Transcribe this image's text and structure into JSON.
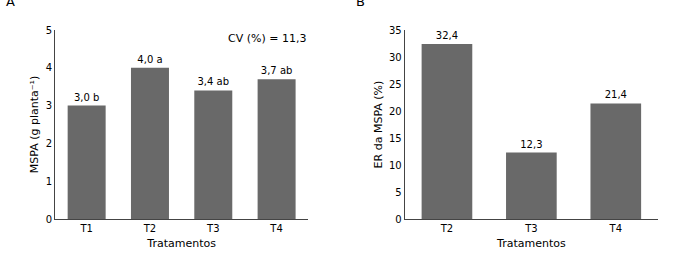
{
  "chart_data": [
    {
      "type": "bar",
      "title": "A",
      "categories": [
        "T1",
        "T2",
        "T3",
        "T4"
      ],
      "values": [
        3.0,
        4.0,
        3.4,
        3.7
      ],
      "value_labels": [
        "3,0 b",
        "4,0 a",
        "3,4 ab",
        "3,7 ab"
      ],
      "data_labels": true,
      "color": "#696969",
      "xlabel": "Tratamentos",
      "ylabel": "MSPA (g planta⁻¹)",
      "ylim": [
        0,
        5
      ],
      "yticks": [
        0,
        1,
        2,
        3,
        4,
        5
      ],
      "annotations": [
        "CV (%) = 11,3"
      ],
      "grid": false
    },
    {
      "type": "bar",
      "title": "B",
      "categories": [
        "T2",
        "T3",
        "T4"
      ],
      "values": [
        32.4,
        12.3,
        21.4
      ],
      "value_labels": [
        "32,4",
        "12,3",
        "21,4"
      ],
      "data_labels": true,
      "color": "#696969",
      "xlabel": "Tratamentos",
      "ylabel": "ER da MSPA (%)",
      "ylim": [
        0,
        35
      ],
      "yticks": [
        0,
        5,
        10,
        15,
        20,
        25,
        30,
        35
      ],
      "grid": false
    }
  ]
}
